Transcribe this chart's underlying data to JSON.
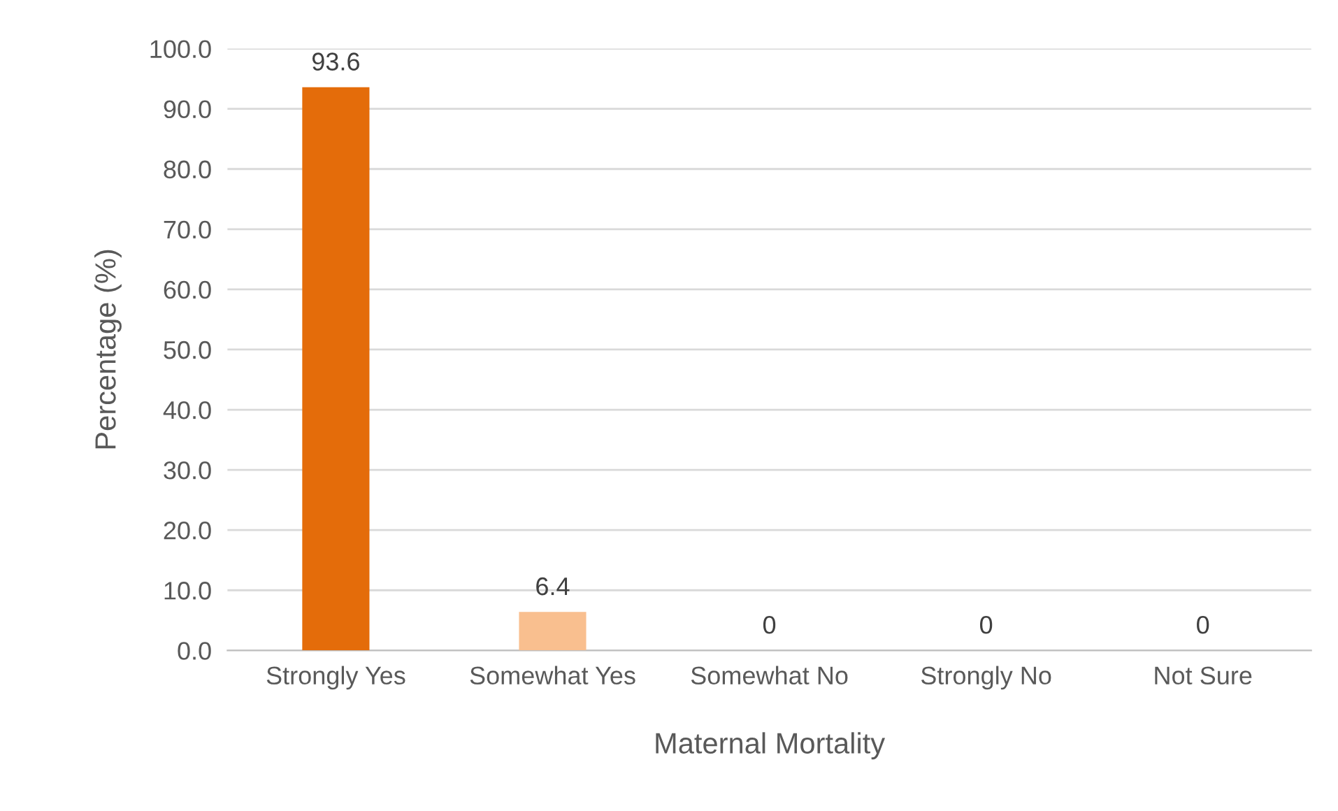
{
  "chart_data": {
    "type": "bar",
    "xlabel": "Maternal Mortality",
    "ylabel": "Percentage (%)",
    "categories": [
      "Strongly Yes",
      "Somewhat Yes",
      "Somewhat No",
      "Strongly No",
      "Not Sure"
    ],
    "values": [
      93.6,
      6.4,
      0,
      0,
      0
    ],
    "colors": [
      "#e46c0a",
      "#f9bf8f",
      null,
      null,
      null
    ],
    "value_labels": [
      "93.6",
      "6.4",
      "0",
      "0",
      "0"
    ],
    "ylim": [
      0,
      100
    ],
    "yticks": [
      {
        "value": 0,
        "label": "0.0"
      },
      {
        "value": 10,
        "label": "10.0"
      },
      {
        "value": 20,
        "label": "20.0"
      },
      {
        "value": 30,
        "label": "30.0"
      },
      {
        "value": 40,
        "label": "40.0"
      },
      {
        "value": 50,
        "label": "50.0"
      },
      {
        "value": 60,
        "label": "60.0"
      },
      {
        "value": 70,
        "label": "70.0"
      },
      {
        "value": 80,
        "label": "80.0"
      },
      {
        "value": 90,
        "label": "90.0"
      },
      {
        "value": 100,
        "label": "100.0"
      }
    ],
    "grid": "y"
  }
}
